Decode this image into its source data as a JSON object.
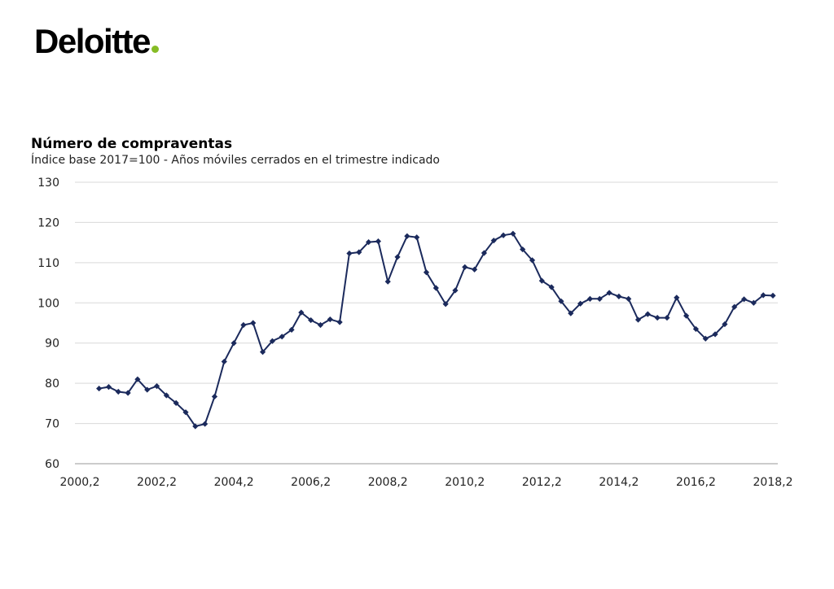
{
  "brand": {
    "name": "Deloitte",
    "dot_color": "#86BC25"
  },
  "chart_data": {
    "type": "line",
    "title": "Número de compraventas",
    "subtitle": "Índice base 2017=100  - Años móviles cerrados en el trimestre indicado",
    "xlabel": "",
    "ylabel": "",
    "ylim": [
      60,
      130
    ],
    "yticks": [
      60,
      70,
      80,
      90,
      100,
      110,
      120,
      130
    ],
    "xtick_labels": [
      "2000,2",
      "2002,2",
      "2004,2",
      "2006,2",
      "2008,2",
      "2010,2",
      "2012,2",
      "2014,2",
      "2016,2",
      "2018,2"
    ],
    "grid": true,
    "line_color": "#1b2a5c",
    "series": [
      {
        "x": [
          "2000,4",
          "2001,1",
          "2001,2",
          "2001,3",
          "2001,4",
          "2002,1",
          "2002,2",
          "2002,3",
          "2002,4",
          "2003,1",
          "2003,2",
          "2003,3",
          "2003,4",
          "2004,1",
          "2004,2",
          "2004,3",
          "2004,4",
          "2005,1",
          "2005,2",
          "2005,3",
          "2005,4",
          "2006,1",
          "2006,2",
          "2006,3",
          "2006,4",
          "2007,1",
          "2007,2",
          "2007,3",
          "2007,4",
          "2008,1",
          "2008,2",
          "2008,3",
          "2008,4",
          "2009,1",
          "2009,2",
          "2009,3",
          "2009,4",
          "2010,1",
          "2010,2",
          "2010,3",
          "2010,4",
          "2011,1",
          "2011,2",
          "2011,3",
          "2011,4",
          "2012,1",
          "2012,2",
          "2012,3",
          "2012,4",
          "2013,1",
          "2013,2",
          "2013,3",
          "2013,4",
          "2014,1",
          "2014,2",
          "2014,3",
          "2014,4",
          "2015,1",
          "2015,2",
          "2015,3",
          "2015,4",
          "2016,1",
          "2016,2",
          "2016,3",
          "2016,4",
          "2017,1",
          "2017,2",
          "2017,3",
          "2017,4",
          "2018,1",
          "2018,2"
        ],
        "values": [
          78.7,
          79.1,
          77.9,
          77.6,
          81.0,
          78.4,
          79.3,
          77.0,
          75.1,
          72.8,
          69.3,
          69.9,
          76.7,
          85.4,
          90.0,
          94.5,
          95.0,
          87.8,
          90.5,
          91.6,
          93.3,
          97.6,
          95.7,
          94.5,
          95.9,
          95.2,
          112.3,
          112.6,
          115.1,
          115.3,
          105.3,
          111.4,
          116.6,
          116.3,
          107.6,
          103.7,
          99.7,
          103.1,
          108.9,
          108.3,
          112.4,
          115.5,
          116.8,
          117.2,
          113.3,
          110.6,
          105.5,
          103.9,
          100.4,
          97.4,
          99.8,
          101.0,
          101.0,
          102.5,
          101.6,
          101.0,
          95.8,
          97.2,
          96.3,
          96.3,
          101.3,
          96.8,
          93.5,
          91.1,
          92.2,
          94.7,
          99.0,
          100.9,
          100.0,
          101.9,
          101.8
        ]
      }
    ]
  }
}
